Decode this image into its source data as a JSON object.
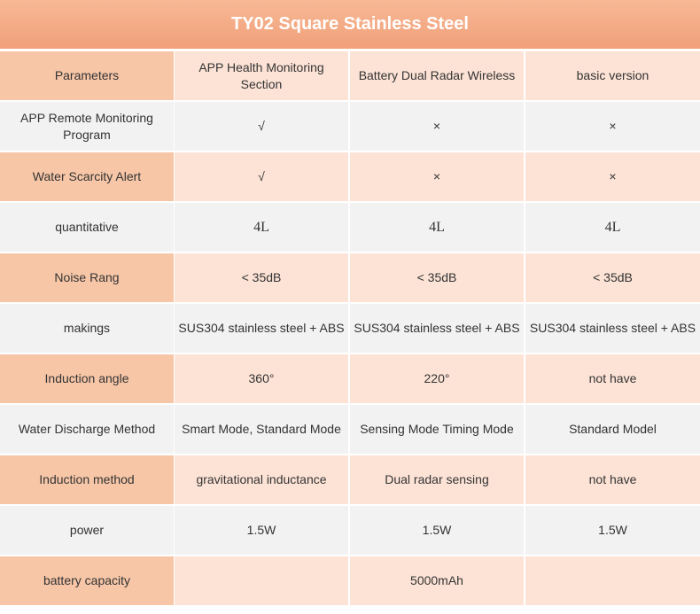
{
  "header": {
    "title": "TY02 Square Stainless Steel"
  },
  "table": {
    "columns": [
      "Parameters",
      "APP Health Monitoring Section",
      "Battery Dual Radar Wireless",
      "basic version"
    ],
    "rows": [
      [
        "APP Remote Monitoring Program",
        "√",
        "×",
        "×"
      ],
      [
        "Water Scarcity Alert",
        "√",
        "×",
        "×"
      ],
      [
        "quantitative",
        "4L",
        "4L",
        "4L"
      ],
      [
        "Noise Rang",
        "< 35dB",
        "< 35dB",
        "< 35dB"
      ],
      [
        "makings",
        "SUS304 stainless steel + ABS",
        "SUS304 stainless steel + ABS",
        "SUS304 stainless steel + ABS"
      ],
      [
        "Induction angle",
        "360°",
        "220°",
        "not have"
      ],
      [
        "Water Discharge Method",
        "Smart Mode, Standard Mode",
        "Sensing Mode Timing Mode",
        "Standard Model"
      ],
      [
        "Induction method",
        "gravitational inductance",
        "Dual radar sensing",
        "not have"
      ],
      [
        "power",
        "1.5W",
        "1.5W",
        "1.5W"
      ],
      [
        "battery capacity",
        null,
        "5000mAh",
        null
      ]
    ]
  }
}
